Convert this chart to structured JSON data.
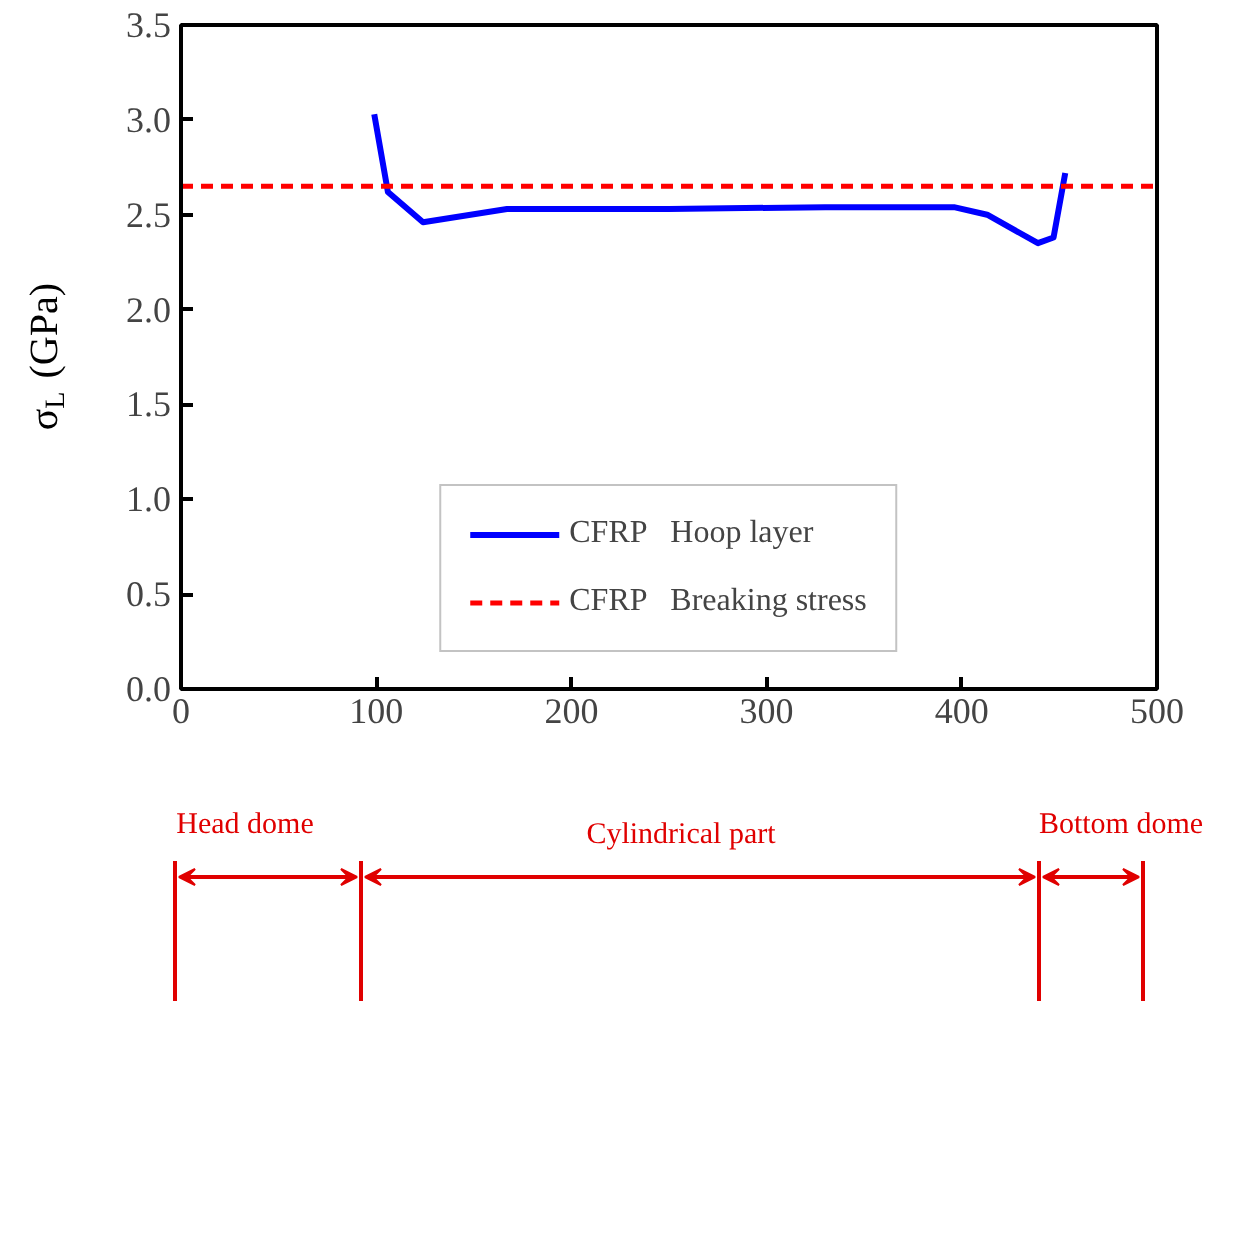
{
  "chart_data": {
    "type": "line",
    "ylabel": "σ$_{L}$ (GPa)",
    "x": [
      99,
      106,
      124,
      167,
      250,
      330,
      396,
      413,
      439,
      447,
      453
    ],
    "series": [
      {
        "name": "CFRP   Hoop layer",
        "color": "#0000ff",
        "values": [
          3.03,
          2.62,
          2.46,
          2.53,
          2.53,
          2.54,
          2.54,
          2.5,
          2.35,
          2.38,
          2.72
        ]
      }
    ],
    "ref_lines": [
      {
        "axis": "y",
        "value": 2.65,
        "label": "CFRP   Breaking stress",
        "color": "#ff0000",
        "line_style": "dashed"
      }
    ],
    "xlim": [
      0,
      500
    ],
    "ylim": [
      0,
      3.5
    ],
    "xticks": [
      0,
      100,
      200,
      300,
      400,
      500
    ],
    "yticks": [
      {
        "value": 0,
        "label": "0.0"
      },
      {
        "value": 0.5,
        "label": "0.5"
      },
      {
        "value": 1,
        "label": "1.0"
      },
      {
        "value": 1.5,
        "label": "1.5"
      },
      {
        "value": 2,
        "label": "2.0"
      },
      {
        "value": 2.5,
        "label": "2.5"
      },
      {
        "value": 3,
        "label": "3.0"
      },
      {
        "value": 3.5,
        "label": "3.5"
      }
    ],
    "grid": false,
    "legend": "bottom",
    "line_style": "solid",
    "marker": "none",
    "annotations": [
      "Head dome",
      "Cylindrical part",
      "Bottom dome"
    ]
  }
}
